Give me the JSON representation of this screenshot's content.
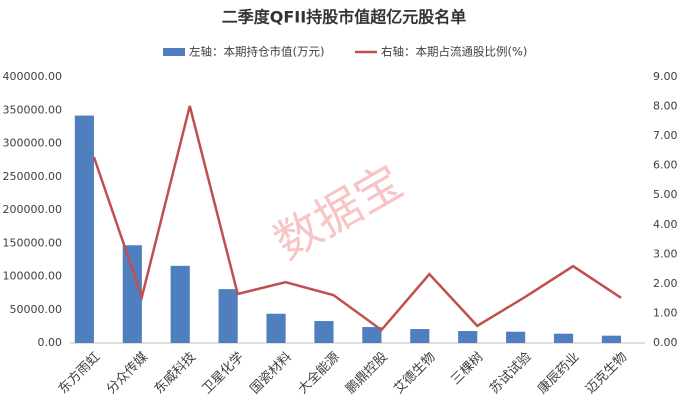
{
  "chart_data": {
    "type": "bar-line",
    "title": "二季度QFII持股市值超亿元股名单",
    "watermark": "数据宝",
    "categories": [
      "东方雨虹",
      "分众传媒",
      "东威科技",
      "卫星化学",
      "国瓷材料",
      "大全能源",
      "鹏鼎控股",
      "艾德生物",
      "三棵树",
      "苏试试验",
      "康辰药业",
      "迈克生物"
    ],
    "series": [
      {
        "name": "左轴：本期持仓市值(万元)",
        "type": "bar",
        "color": "#4f7fbe",
        "values": [
          342000,
          147000,
          116000,
          81000,
          44000,
          33000,
          24000,
          21000,
          18000,
          17000,
          14000,
          11000
        ]
      },
      {
        "name": "右轴：本期占流通股比例(%)",
        "type": "line",
        "axis": "y2",
        "color": "#c0504d",
        "values": [
          6.29,
          1.56,
          8.02,
          1.66,
          2.06,
          1.62,
          0.44,
          2.33,
          0.58,
          1.56,
          2.6,
          1.53
        ]
      }
    ],
    "ylim": [
      0,
      400000
    ],
    "yticks": [
      {
        "value": 0,
        "label": "0.00"
      },
      {
        "value": 50000,
        "label": "50000.00"
      },
      {
        "value": 100000,
        "label": "100000.00"
      },
      {
        "value": 150000,
        "label": "150000.00"
      },
      {
        "value": 200000,
        "label": "200000.00"
      },
      {
        "value": 250000,
        "label": "250000.00"
      },
      {
        "value": 300000,
        "label": "300000.00"
      },
      {
        "value": 350000,
        "label": "350000.00"
      },
      {
        "value": 400000,
        "label": "400000.00"
      }
    ],
    "y2lim": [
      0,
      9
    ],
    "y2ticks": [
      {
        "value": 0,
        "label": "0.00"
      },
      {
        "value": 1,
        "label": "1.00"
      },
      {
        "value": 2,
        "label": "2.00"
      },
      {
        "value": 3,
        "label": "3.00"
      },
      {
        "value": 4,
        "label": "4.00"
      },
      {
        "value": 5,
        "label": "5.00"
      },
      {
        "value": 6,
        "label": "6.00"
      },
      {
        "value": 7,
        "label": "7.00"
      },
      {
        "value": 8,
        "label": "8.00"
      },
      {
        "value": 9,
        "label": "9.00"
      }
    ],
    "grid": false
  }
}
